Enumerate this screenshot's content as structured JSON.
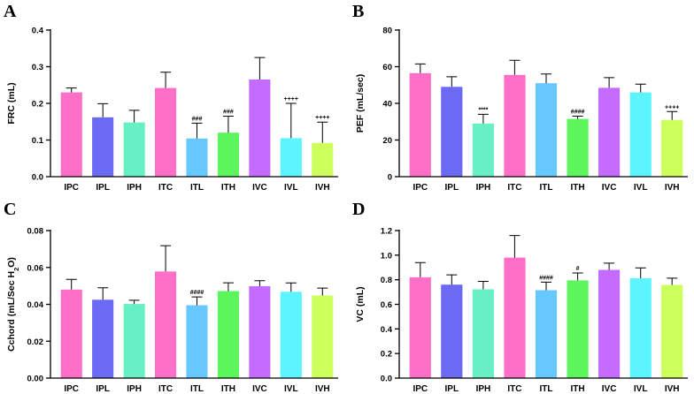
{
  "colors": {
    "IPC": "#ff6ec7",
    "IPL": "#6a6af5",
    "IPH": "#66f0c4",
    "ITC": "#ff6ec7",
    "ITL": "#66c8ff",
    "ITH": "#5cf55c",
    "IVC": "#c56bff",
    "IVL": "#5cf5ff",
    "IVH": "#ccff5c"
  },
  "chart_data": [
    {
      "type": "bar",
      "panel": "A",
      "title": "",
      "xlabel": "",
      "ylabel": "FRC (mL)",
      "ylim": [
        0,
        0.4
      ],
      "yticks": [
        "0.0",
        "0.1",
        "0.2",
        "0.3",
        "0.4"
      ],
      "categories": [
        "IPC",
        "IPL",
        "IPH",
        "ITC",
        "ITL",
        "ITH",
        "IVC",
        "IVL",
        "IVH"
      ],
      "values": [
        0.23,
        0.162,
        0.148,
        0.242,
        0.104,
        0.12,
        0.265,
        0.105,
        0.092
      ],
      "errors": [
        0.012,
        0.037,
        0.033,
        0.043,
        0.042,
        0.045,
        0.06,
        0.095,
        0.057
      ],
      "annotations": [
        "",
        "",
        "",
        "",
        "###",
        "###",
        "",
        "++++",
        "++++"
      ]
    },
    {
      "type": "bar",
      "panel": "B",
      "title": "",
      "xlabel": "",
      "ylabel": "PEF (mL/sec)",
      "ylim": [
        0,
        80
      ],
      "yticks": [
        "0",
        "20",
        "40",
        "60",
        "80"
      ],
      "categories": [
        "IPC",
        "IPL",
        "IPH",
        "ITC",
        "ITL",
        "ITH",
        "IVC",
        "IVL",
        "IVH"
      ],
      "values": [
        56.5,
        49,
        29,
        55.5,
        51,
        31.5,
        48.5,
        46,
        31
      ],
      "errors": [
        5,
        5.5,
        5,
        8,
        5,
        1.5,
        5.5,
        4.5,
        4.5
      ],
      "annotations": [
        "",
        "",
        "****",
        "",
        "",
        "####",
        "",
        "",
        "++++"
      ]
    },
    {
      "type": "bar",
      "panel": "C",
      "title": "",
      "xlabel": "",
      "ylabel_parts": [
        "Cchord (mL/Sec H",
        "2",
        "O)"
      ],
      "ylim": [
        0,
        0.08
      ],
      "yticks": [
        "0.00",
        "0.02",
        "0.04",
        "0.06",
        "0.08"
      ],
      "categories": [
        "IPC",
        "IPL",
        "IPH",
        "ITC",
        "ITL",
        "ITH",
        "IVC",
        "IVL",
        "IVH"
      ],
      "values": [
        0.048,
        0.0425,
        0.0402,
        0.0578,
        0.0395,
        0.0472,
        0.0498,
        0.0468,
        0.0448
      ],
      "errors": [
        0.0055,
        0.0065,
        0.002,
        0.014,
        0.0045,
        0.0045,
        0.003,
        0.0048,
        0.004
      ],
      "annotations": [
        "",
        "",
        "",
        "",
        "####",
        "",
        "",
        "",
        ""
      ]
    },
    {
      "type": "bar",
      "panel": "D",
      "title": "",
      "xlabel": "",
      "ylabel": "VC (mL)",
      "ylim": [
        0,
        1.2
      ],
      "yticks": [
        "0.0",
        "0.2",
        "0.4",
        "0.6",
        "0.8",
        "1.0",
        "1.2"
      ],
      "categories": [
        "IPC",
        "IPL",
        "IPH",
        "ITC",
        "ITL",
        "ITH",
        "IVC",
        "IVL",
        "IVH"
      ],
      "values": [
        0.82,
        0.76,
        0.722,
        0.98,
        0.715,
        0.795,
        0.88,
        0.812,
        0.758
      ],
      "errors": [
        0.12,
        0.08,
        0.065,
        0.18,
        0.065,
        0.06,
        0.055,
        0.085,
        0.055
      ],
      "annotations": [
        "",
        "",
        "",
        "",
        "####",
        "#",
        "",
        "",
        ""
      ]
    }
  ]
}
